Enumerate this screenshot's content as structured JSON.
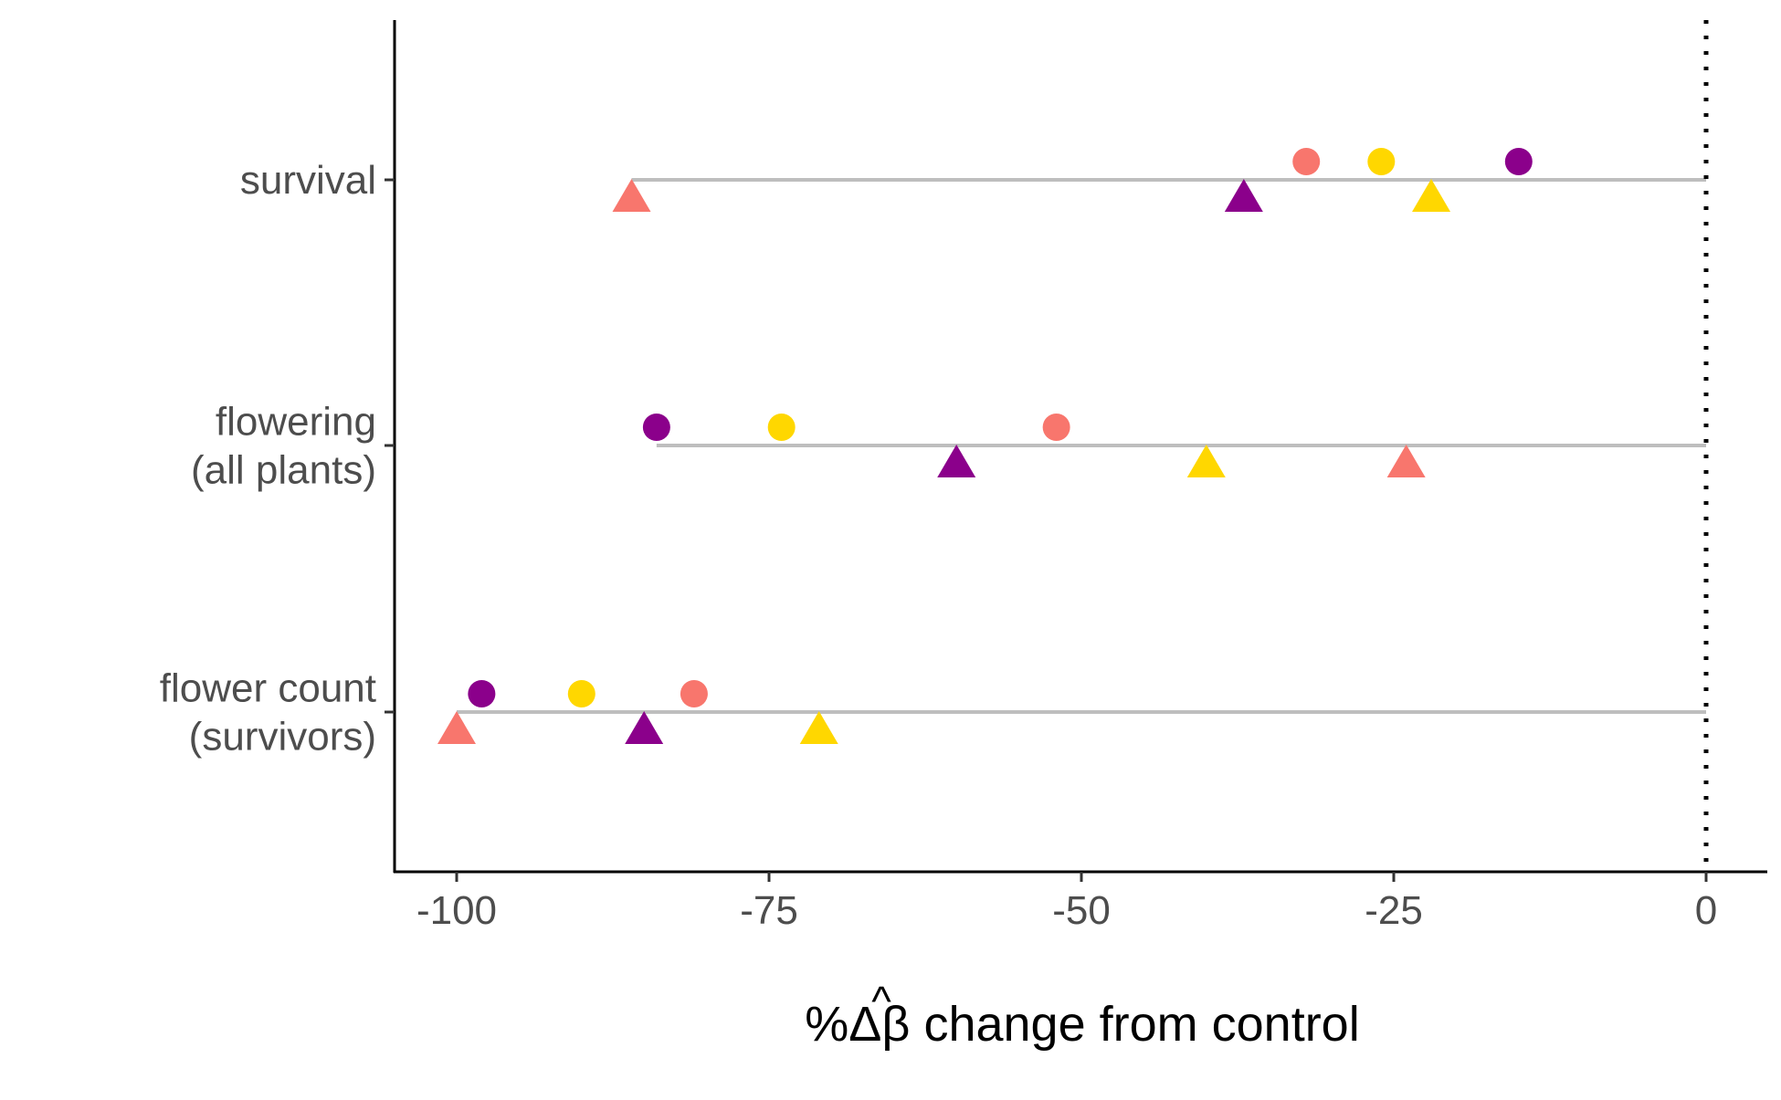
{
  "chart_data": {
    "type": "scatter",
    "title": "",
    "xlabel": "%Δβ̂ change from control",
    "xlabel_parts": {
      "prefix": "%Δ",
      "symbol": "β",
      "hat": "^",
      "suffix": " change from control"
    },
    "ylabel": "",
    "xlim": [
      -105,
      5
    ],
    "xticks": [
      -100,
      -75,
      -50,
      -25,
      0
    ],
    "xtick_labels": [
      "-100",
      "-75",
      "-50",
      "-25",
      "0"
    ],
    "reference_line_x": 0,
    "grid": false,
    "legend": "none",
    "categories": [
      {
        "key": "survival",
        "lines": [
          "survival"
        ]
      },
      {
        "key": "flowering",
        "lines": [
          "flowering",
          "(all plants)"
        ]
      },
      {
        "key": "flower_count",
        "lines": [
          "flower count",
          "(survivors)"
        ]
      }
    ],
    "range_lines": [
      {
        "category": "survival",
        "from": -86,
        "to": 0
      },
      {
        "category": "flowering",
        "from": -84,
        "to": 0
      },
      {
        "category": "flower_count",
        "from": -100,
        "to": 0
      }
    ],
    "colors": {
      "salmon": "#F8766D",
      "gold": "#FFD700",
      "purple": "#8B008B",
      "range_line": "#BEBEBE"
    },
    "series": [
      {
        "color": "salmon",
        "shape": "circle",
        "values": [
          -32,
          -52,
          -81
        ]
      },
      {
        "color": "gold",
        "shape": "circle",
        "values": [
          -26,
          -74,
          -90
        ]
      },
      {
        "color": "purple",
        "shape": "circle",
        "values": [
          -15,
          -84,
          -98
        ]
      },
      {
        "color": "salmon",
        "shape": "triangle",
        "values": [
          -86,
          -24,
          -100
        ]
      },
      {
        "color": "purple",
        "shape": "triangle",
        "values": [
          -37,
          -60,
          -85
        ]
      },
      {
        "color": "gold",
        "shape": "triangle",
        "values": [
          -22,
          -40,
          -71
        ]
      }
    ]
  }
}
